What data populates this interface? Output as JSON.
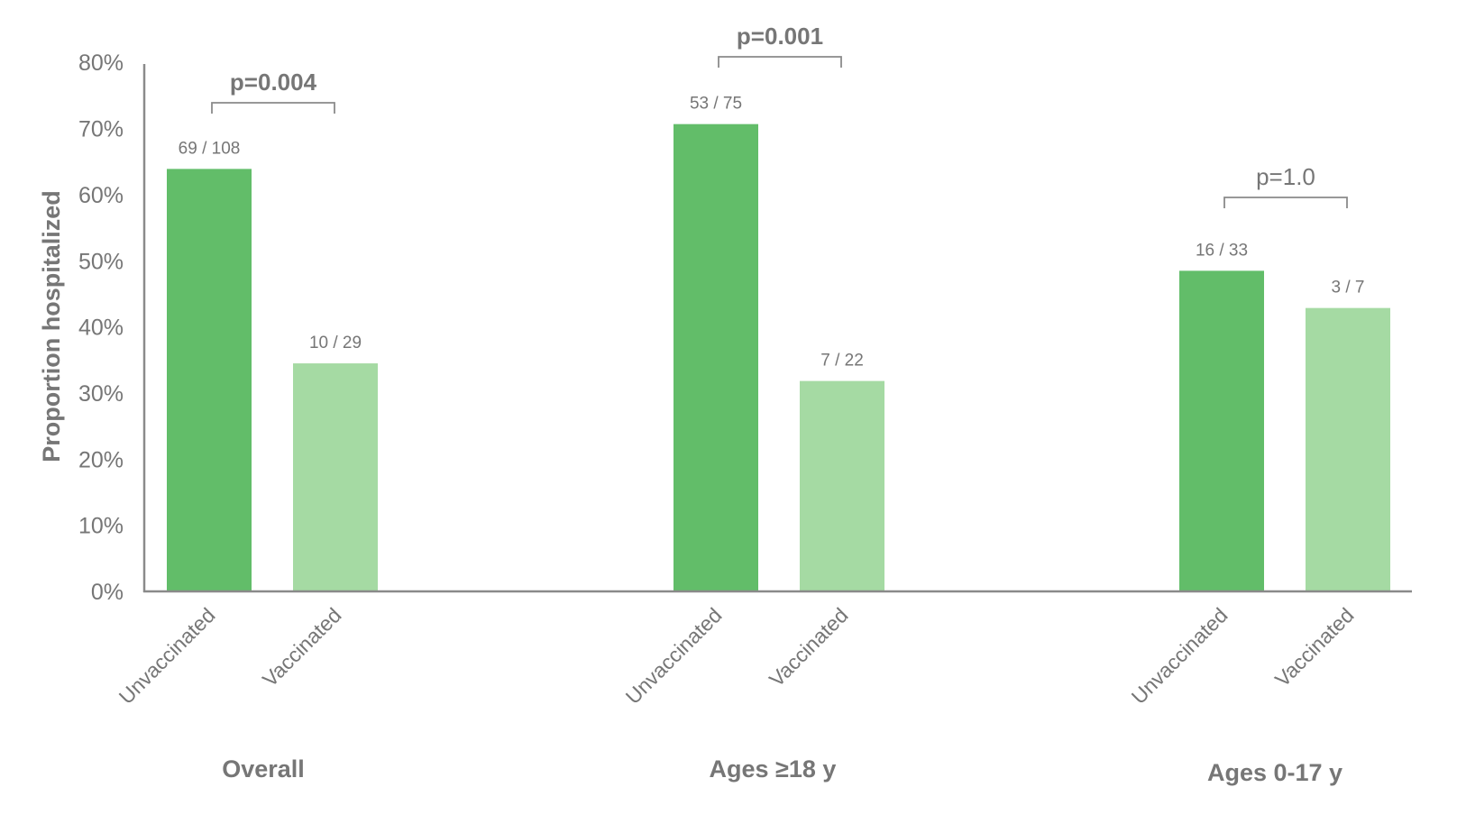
{
  "chart_data": {
    "type": "bar",
    "title": "",
    "ylabel": "Proportion hospitalized",
    "xlabel": "",
    "ylim": [
      0,
      0.8
    ],
    "yticks": [
      "0%",
      "10%",
      "20%",
      "30%",
      "40%",
      "50%",
      "60%",
      "70%",
      "80%"
    ],
    "grid": false,
    "legend": "none",
    "colors": {
      "Unvaccinated": "#62BD69",
      "Vaccinated": "#A5DAA3",
      "text": "#767676",
      "axis": "#8a8a8a"
    },
    "groups": [
      {
        "name": "Overall",
        "p_value": "p=0.004",
        "p_bold": true,
        "bars": [
          {
            "category": "Unvaccinated",
            "numerator": 69,
            "denominator": 108,
            "label": "69 / 108"
          },
          {
            "category": "Vaccinated",
            "numerator": 10,
            "denominator": 29,
            "label": "10 / 29"
          }
        ]
      },
      {
        "name": "Ages ≥18 y",
        "p_value": "p=0.001",
        "p_bold": true,
        "bars": [
          {
            "category": "Unvaccinated",
            "numerator": 53,
            "denominator": 75,
            "label": "53 / 75"
          },
          {
            "category": "Vaccinated",
            "numerator": 7,
            "denominator": 22,
            "label": "7 / 22"
          }
        ]
      },
      {
        "name": "Ages 0-17 y",
        "p_value": "p=1.0",
        "p_bold": false,
        "bars": [
          {
            "category": "Unvaccinated",
            "numerator": 16,
            "denominator": 33,
            "label": "16 / 33"
          },
          {
            "category": "Vaccinated",
            "numerator": 3,
            "denominator": 7,
            "label": "3 / 7"
          }
        ]
      }
    ]
  }
}
